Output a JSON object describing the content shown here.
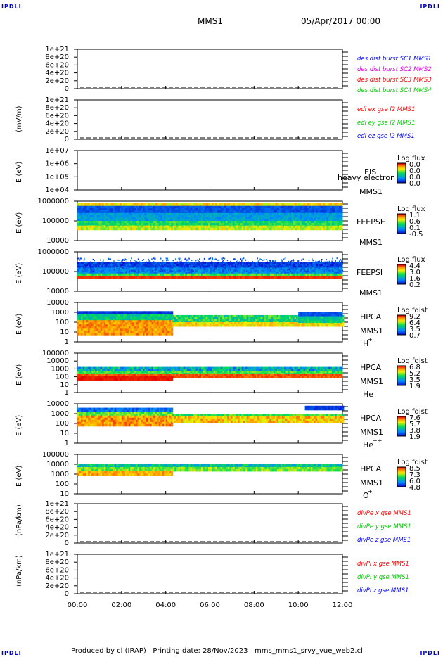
{
  "corners": {
    "tl": "IPDLI",
    "tr": "IPDLI",
    "bl": "IPDLI",
    "br": "IPDLI"
  },
  "header": {
    "mission": "MMS1",
    "date": "05/Apr/2017 00:00"
  },
  "footer": {
    "text": "Produced by cl (IRAP)   Printing date: 28/Nov/2023   mms_mms1_srvy_vue_web2.cl"
  },
  "colors": {
    "red": "#ff0000",
    "magenta": "#e000e0",
    "green": "#00cc00",
    "blue": "#0000ff"
  },
  "chart_data": [
    {
      "type": "line",
      "ylabel": "",
      "yticks": [
        "1e+21",
        "8e+20",
        "6e+20",
        "4e+20",
        "2e+20",
        "0"
      ],
      "legend": [
        {
          "text": "des dist burst SC1 MMS1",
          "color": "blue"
        },
        {
          "text": "des dist burst SC2 MMS2",
          "color": "magenta"
        },
        {
          "text": "des dist burst SC3 MMS3",
          "color": "red"
        },
        {
          "text": "des dist burst SC4 MMS4",
          "color": "green"
        }
      ],
      "series": []
    },
    {
      "type": "line",
      "ylabel": "(mV/m)",
      "yticks": [
        "1e+21",
        "8e+20",
        "6e+20",
        "4e+20",
        "2e+20",
        "0"
      ],
      "legend": [
        {
          "text": "edi ex gse l2 MMS1",
          "color": "red"
        },
        {
          "text": "edi ey gse l2 MMS1",
          "color": "green"
        },
        {
          "text": "edi ez gse l2 MMS1",
          "color": "blue"
        }
      ],
      "series": []
    },
    {
      "type": "heatmap",
      "ylabel": "E (eV)",
      "yticks": [
        "1e+07",
        "1e+06",
        "1e+05",
        "1e+04"
      ],
      "instrument": [
        "EIS",
        "MMS1"
      ],
      "overlay": "heavy electron to",
      "cbar_title": "Log flux",
      "cbar_ticks": [
        "0.0",
        "0.0",
        "0.0",
        "0.0"
      ]
    },
    {
      "type": "heatmap",
      "ylabel": "E (eV)",
      "yticks": [
        "1000000",
        "100000",
        "10000"
      ],
      "instrument": [
        "FEEPSE",
        "MMS1"
      ],
      "cbar_title": "Log flux",
      "cbar_ticks": [
        "1.1",
        "0.6",
        "0.1",
        "-0.5"
      ]
    },
    {
      "type": "heatmap",
      "ylabel": "E (eV)",
      "yticks": [
        "1000000",
        "100000",
        "10000"
      ],
      "instrument": [
        "FEEPSI",
        "MMS1"
      ],
      "cbar_title": "Log flux",
      "cbar_ticks": [
        "4.4",
        "3.0",
        "1.6",
        "0.2"
      ]
    },
    {
      "type": "heatmap",
      "ylabel": "E (eV)",
      "yticks": [
        "10000",
        "1000",
        "100",
        "10",
        "1"
      ],
      "instrument": [
        "HPCA",
        "MMS1",
        "H",
        "+"
      ],
      "cbar_title": "Log fdist",
      "cbar_ticks": [
        "9.2",
        "6.4",
        "3.5",
        "0.7"
      ]
    },
    {
      "type": "heatmap",
      "ylabel": "E (eV)",
      "yticks": [
        "100000",
        "10000",
        "1000",
        "100",
        "10",
        "1"
      ],
      "instrument": [
        "HPCA",
        "MMS1",
        "He",
        "+"
      ],
      "cbar_title": "Log fdist",
      "cbar_ticks": [
        "6.8",
        "5.2",
        "3.5",
        "1.9"
      ]
    },
    {
      "type": "heatmap",
      "ylabel": "E (eV)",
      "yticks": [
        "10000",
        "1000",
        "100",
        "10",
        "1"
      ],
      "instrument": [
        "HPCA",
        "MMS1",
        "He",
        "++"
      ],
      "cbar_title": "Log fdist",
      "cbar_ticks": [
        "7.6",
        "5.7",
        "3.8",
        "1.9"
      ]
    },
    {
      "type": "heatmap",
      "ylabel": "E (eV)",
      "yticks": [
        "100000",
        "10000",
        "1000",
        "100",
        "10"
      ],
      "instrument": [
        "HPCA",
        "MMS1",
        "O",
        "+"
      ],
      "cbar_title": "Log fdist",
      "cbar_ticks": [
        "8.5",
        "7.3",
        "6.0",
        "4.8"
      ]
    },
    {
      "type": "line",
      "ylabel": "(nPa/km)",
      "yticks": [
        "1e+21",
        "8e+20",
        "6e+20",
        "4e+20",
        "2e+20",
        "0"
      ],
      "legend": [
        {
          "text": "divPe x gse MMS1",
          "color": "red"
        },
        {
          "text": "divPe y gse MMS1",
          "color": "green"
        },
        {
          "text": "divPe z gse MMS1",
          "color": "blue"
        }
      ],
      "series": []
    },
    {
      "type": "line",
      "ylabel": "(nPa/km)",
      "yticks": [
        "1e+21",
        "8e+20",
        "6e+20",
        "4e+20",
        "2e+20",
        "0"
      ],
      "legend": [
        {
          "text": "divPi x gse MMS1",
          "color": "red"
        },
        {
          "text": "divPi y gse MMS1",
          "color": "green"
        },
        {
          "text": "divPi z gse MMS1",
          "color": "blue"
        }
      ],
      "series": []
    }
  ],
  "xaxis": {
    "ticks": [
      "00:00",
      "02:00",
      "04:00",
      "06:00",
      "08:00",
      "10:00",
      "12:00"
    ]
  }
}
